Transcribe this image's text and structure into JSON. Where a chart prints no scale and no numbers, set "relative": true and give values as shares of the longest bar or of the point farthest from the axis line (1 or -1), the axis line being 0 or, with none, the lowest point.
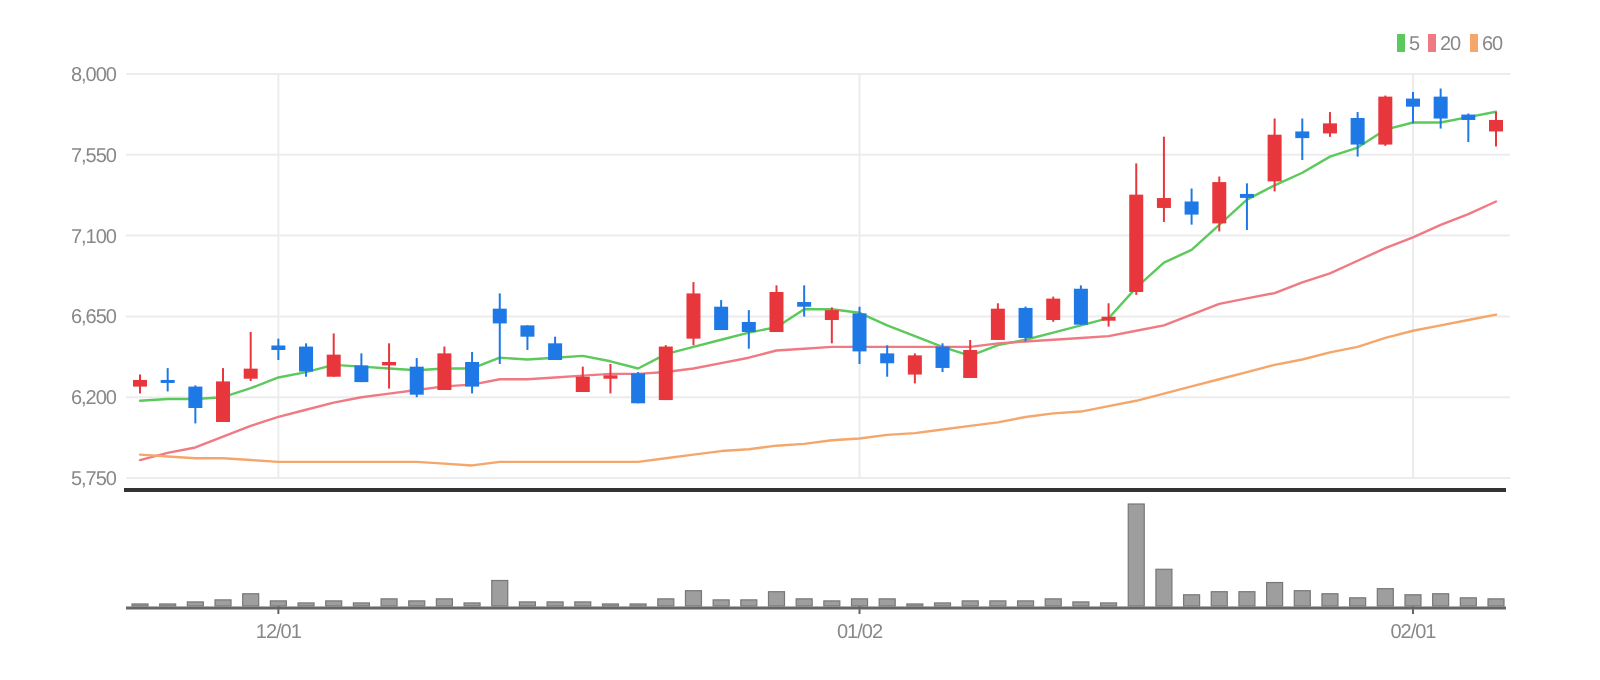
{
  "chart_data": [
    {
      "type": "candlestick",
      "categories": [
        null,
        null,
        null,
        null,
        null,
        null,
        null,
        null,
        null,
        null,
        null,
        null,
        null,
        null,
        null,
        null,
        null,
        null,
        null,
        null,
        null,
        null,
        null,
        null,
        null,
        null,
        null,
        null,
        null,
        null,
        null,
        null,
        null,
        null,
        null,
        null,
        null,
        null,
        null,
        null,
        null,
        null,
        null,
        null,
        null,
        null,
        null,
        null,
        null,
        null
      ],
      "ohlc": [
        [
          6259,
          6326,
          6221,
          6296
        ],
        [
          6296,
          6362,
          6232,
          6285
        ],
        [
          6259,
          6266,
          6054,
          6140
        ],
        [
          6062,
          6362,
          6062,
          6288
        ],
        [
          6303,
          6563,
          6290,
          6359
        ],
        [
          6488,
          6526,
          6407,
          6463
        ],
        [
          6482,
          6500,
          6314,
          6343
        ],
        [
          6314,
          6555,
          6314,
          6437
        ],
        [
          6377,
          6444,
          6284,
          6284
        ],
        [
          6377,
          6500,
          6248,
          6396
        ],
        [
          6370,
          6418,
          6200,
          6214
        ],
        [
          6240,
          6482,
          6240,
          6444
        ],
        [
          6396,
          6452,
          6221,
          6259
        ],
        [
          6693,
          6778,
          6385,
          6611
        ],
        [
          6600,
          6600,
          6463,
          6537
        ],
        [
          6500,
          6537,
          6407,
          6407
        ],
        [
          6229,
          6370,
          6229,
          6314
        ],
        [
          6303,
          6385,
          6221,
          6322
        ],
        [
          6333,
          6340,
          6166,
          6166
        ],
        [
          6184,
          6490,
          6184,
          6482
        ],
        [
          6526,
          6841,
          6489,
          6778
        ],
        [
          6704,
          6741,
          6574,
          6574
        ],
        [
          6619,
          6685,
          6470,
          6563
        ],
        [
          6563,
          6823,
          6563,
          6786
        ],
        [
          6730,
          6823,
          6649,
          6704
        ],
        [
          6630,
          6700,
          6500,
          6685
        ],
        [
          6667,
          6704,
          6385,
          6455
        ],
        [
          6444,
          6489,
          6314,
          6389
        ],
        [
          6326,
          6444,
          6277,
          6433
        ],
        [
          6482,
          6500,
          6340,
          6363
        ],
        [
          6307,
          6519,
          6307,
          6463
        ],
        [
          6519,
          6723,
          6519,
          6693
        ],
        [
          6697,
          6705,
          6510,
          6530
        ],
        [
          6630,
          6760,
          6620,
          6749
        ],
        [
          6804,
          6823,
          6604,
          6604
        ],
        [
          6626,
          6723,
          6593,
          6648
        ],
        [
          6786,
          7502,
          6770,
          7328
        ],
        [
          7254,
          7651,
          7176,
          7309
        ],
        [
          7290,
          7362,
          7161,
          7217
        ],
        [
          7168,
          7429,
          7123,
          7398
        ],
        [
          7332,
          7391,
          7131,
          7310
        ],
        [
          7402,
          7752,
          7346,
          7662
        ],
        [
          7680,
          7752,
          7521,
          7643
        ],
        [
          7669,
          7788,
          7650,
          7725
        ],
        [
          7755,
          7788,
          7540,
          7607
        ],
        [
          7607,
          7880,
          7600,
          7874
        ],
        [
          7863,
          7900,
          7725,
          7818
        ],
        [
          7874,
          7919,
          7696,
          7752
        ],
        [
          7774,
          7780,
          7621,
          7744
        ],
        [
          7680,
          7788,
          7596,
          7744
        ]
      ],
      "colors": [
        "#e8363d",
        "#1e78e6",
        "#1e78e6",
        "#e8363d",
        "#e8363d",
        "#1e78e6",
        "#1e78e6",
        "#e8363d",
        "#1e78e6",
        "#e8363d",
        "#1e78e6",
        "#e8363d",
        "#1e78e6",
        "#1e78e6",
        "#1e78e6",
        "#1e78e6",
        "#e8363d",
        "#e8363d",
        "#1e78e6",
        "#e8363d",
        "#e8363d",
        "#1e78e6",
        "#1e78e6",
        "#e8363d",
        "#1e78e6",
        "#e8363d",
        "#1e78e6",
        "#1e78e6",
        "#e8363d",
        "#1e78e6",
        "#e8363d",
        "#e8363d",
        "#1e78e6",
        "#e8363d",
        "#1e78e6",
        "#e8363d",
        "#e8363d",
        "#e8363d",
        "#1e78e6",
        "#e8363d",
        "#1e78e6",
        "#e8363d",
        "#1e78e6",
        "#e8363d",
        "#1e78e6",
        "#e8363d",
        "#1e78e6",
        "#1e78e6",
        "#1e78e6",
        "#e8363d"
      ],
      "series": [
        {
          "type": "line",
          "name": "5",
          "color": "#5cc95c",
          "values": [
            6180,
            6190,
            6190,
            6200,
            6250,
            6310,
            6340,
            6380,
            6370,
            6360,
            6350,
            6360,
            6360,
            6420,
            6410,
            6420,
            6430,
            6400,
            6360,
            6440,
            6480,
            6520,
            6560,
            6590,
            6690,
            6690,
            6670,
            6600,
            6540,
            6480,
            6430,
            6490,
            6520,
            6560,
            6600,
            6640,
            6810,
            6950,
            7020,
            7160,
            7300,
            7380,
            7450,
            7540,
            7590,
            7690,
            7730,
            7730,
            7760,
            7790
          ]
        },
        {
          "type": "line",
          "name": "20",
          "color": "#f07a84",
          "values": [
            5850,
            5890,
            5920,
            5980,
            6040,
            6090,
            6130,
            6170,
            6200,
            6220,
            6240,
            6260,
            6270,
            6300,
            6300,
            6310,
            6320,
            6330,
            6330,
            6340,
            6360,
            6390,
            6420,
            6460,
            6470,
            6480,
            6480,
            6480,
            6480,
            6480,
            6480,
            6500,
            6510,
            6520,
            6530,
            6540,
            6570,
            6600,
            6660,
            6720,
            6750,
            6780,
            6840,
            6890,
            6960,
            7030,
            7090,
            7160,
            7220,
            7290
          ]
        },
        {
          "type": "line",
          "name": "60",
          "color": "#f5a66a",
          "values": [
            5880,
            5870,
            5860,
            5860,
            5850,
            5840,
            5840,
            5840,
            5840,
            5840,
            5840,
            5830,
            5820,
            5840,
            5840,
            5840,
            5840,
            5840,
            5840,
            5860,
            5880,
            5900,
            5910,
            5930,
            5940,
            5960,
            5970,
            5990,
            6000,
            6020,
            6040,
            6060,
            6090,
            6110,
            6120,
            6150,
            6180,
            6220,
            6260,
            6300,
            6340,
            6380,
            6410,
            6450,
            6480,
            6530,
            6570,
            6600,
            6630,
            6660
          ]
        }
      ],
      "ylim": [
        5750,
        8000
      ],
      "yticks": [
        {
          "value": 5750,
          "label": "5,750"
        },
        {
          "value": 6200,
          "label": "6,200"
        },
        {
          "value": 6650,
          "label": "6,650"
        },
        {
          "value": 7100,
          "label": "7,100"
        },
        {
          "value": 7550,
          "label": "7,550"
        },
        {
          "value": 8000,
          "label": "8,000"
        }
      ],
      "grid": true,
      "legend": "top right",
      "tick_labels": "y"
    },
    {
      "type": "bar",
      "categories": [
        null,
        null,
        null,
        null,
        null,
        "12/01",
        null,
        null,
        null,
        null,
        null,
        null,
        null,
        null,
        null,
        null,
        null,
        null,
        null,
        null,
        null,
        null,
        null,
        null,
        null,
        null,
        "01/02",
        null,
        null,
        null,
        null,
        null,
        null,
        null,
        null,
        null,
        null,
        null,
        null,
        null,
        null,
        null,
        null,
        null,
        null,
        null,
        "02/01",
        null,
        null,
        null
      ],
      "values": [
        0.02,
        0.02,
        0.04,
        0.06,
        0.12,
        0.05,
        0.03,
        0.05,
        0.03,
        0.07,
        0.05,
        0.07,
        0.03,
        0.25,
        0.04,
        0.04,
        0.04,
        0.02,
        0.02,
        0.07,
        0.15,
        0.06,
        0.06,
        0.14,
        0.07,
        0.05,
        0.07,
        0.07,
        0.02,
        0.03,
        0.05,
        0.05,
        0.05,
        0.07,
        0.04,
        0.03,
        1,
        0.36,
        0.11,
        0.14,
        0.14,
        0.23,
        0.15,
        0.12,
        0.08,
        0.17,
        0.11,
        0.12,
        0.08,
        0.07
      ],
      "color": "#9e9e9e",
      "relative": true,
      "tick_labels": "x"
    }
  ]
}
